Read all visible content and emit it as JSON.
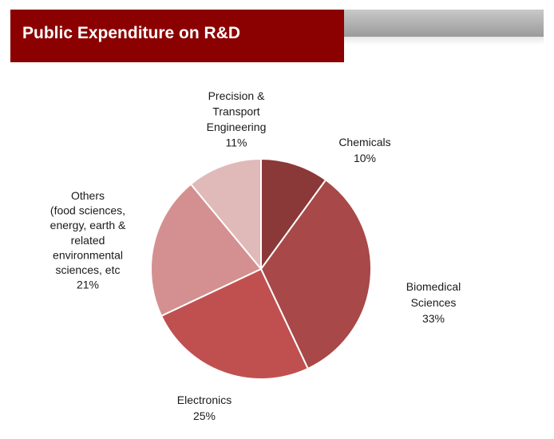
{
  "header": {
    "title": "Public Expenditure on R&D"
  },
  "colors": {
    "header_red": "#8b0000",
    "slices": [
      "#8b3838",
      "#a84848",
      "#c05050",
      "#d49090",
      "#e0b9b9"
    ]
  },
  "chart_data": {
    "type": "pie",
    "title": "Public Expenditure on R&D",
    "slices": [
      {
        "label_lines": [
          "Chemicals"
        ],
        "percent_label": "10%",
        "value": 10
      },
      {
        "label_lines": [
          "Biomedical",
          "Sciences"
        ],
        "percent_label": "33%",
        "value": 33
      },
      {
        "label_lines": [
          "Electronics"
        ],
        "percent_label": "25%",
        "value": 25
      },
      {
        "label_lines": [
          "Others",
          "(food sciences,",
          "energy,  earth &",
          "related",
          "environmental",
          "sciences,  etc"
        ],
        "percent_label": "21%",
        "value": 21
      },
      {
        "label_lines": [
          "Precision &",
          "Transport",
          "Engineering"
        ],
        "percent_label": "11%",
        "value": 11
      }
    ],
    "start_direction": "12 o'clock, clockwise"
  }
}
